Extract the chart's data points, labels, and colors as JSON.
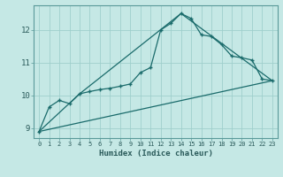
{
  "title": "",
  "xlabel": "Humidex (Indice chaleur)",
  "ylabel": "",
  "bg_color": "#c5e8e5",
  "grid_color": "#9fcfcc",
  "line_color": "#1a6b6b",
  "xlim": [
    -0.5,
    23.5
  ],
  "ylim": [
    8.7,
    12.75
  ],
  "yticks": [
    9,
    10,
    11,
    12
  ],
  "xticks": [
    0,
    1,
    2,
    3,
    4,
    5,
    6,
    7,
    8,
    9,
    10,
    11,
    12,
    13,
    14,
    15,
    16,
    17,
    18,
    19,
    20,
    21,
    22,
    23
  ],
  "line1_x": [
    0,
    1,
    2,
    3,
    4,
    5,
    6,
    7,
    8,
    9,
    10,
    11,
    12,
    13,
    14,
    15,
    16,
    17,
    18,
    19,
    20,
    21,
    22,
    23
  ],
  "line1_y": [
    8.9,
    9.65,
    9.85,
    9.75,
    10.05,
    10.12,
    10.18,
    10.22,
    10.28,
    10.35,
    10.7,
    10.85,
    12.0,
    12.2,
    12.5,
    12.35,
    11.85,
    11.8,
    11.55,
    11.2,
    11.15,
    11.08,
    10.5,
    10.45
  ],
  "line2_x": [
    0,
    4,
    14,
    23
  ],
  "line2_y": [
    8.9,
    10.05,
    12.5,
    10.45
  ],
  "line3_x": [
    0,
    23
  ],
  "line3_y": [
    8.9,
    10.45
  ],
  "figsize": [
    3.2,
    2.0
  ],
  "dpi": 100
}
